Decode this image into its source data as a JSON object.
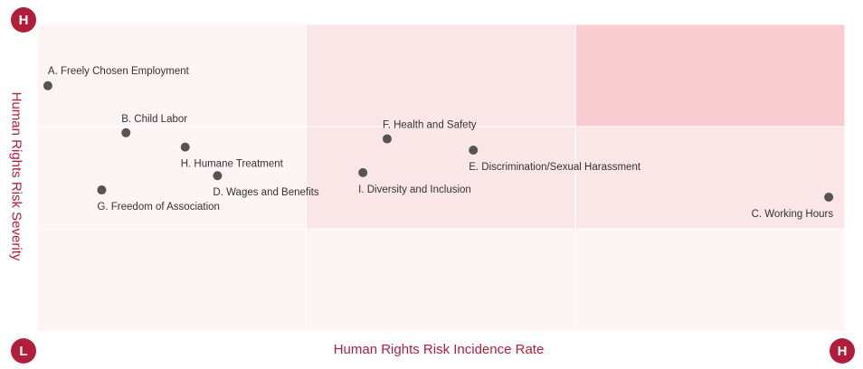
{
  "chart_data": {
    "type": "scatter",
    "xlabel": "Human Rights Risk Incidence Rate",
    "ylabel": "Human Rights Risk Severity",
    "xlim": [
      0,
      3
    ],
    "ylim": [
      0,
      3
    ],
    "corner_labels": {
      "top_left": "H",
      "bottom_left": "L",
      "bottom_right": "H"
    },
    "zone_colors": [
      "#fdf4f4",
      "#fbe6e7",
      "#f8ccd1"
    ],
    "zones": [
      [
        0,
        0,
        0
      ],
      [
        0,
        1,
        1
      ],
      [
        0,
        1,
        2
      ]
    ],
    "dot_color": "#555555",
    "accent_color": "#b01e3c",
    "points": [
      {
        "label": "A. Freely Chosen Employment",
        "x": 0.04,
        "y": 2.4,
        "label_pos": "above-right"
      },
      {
        "label": "B. Child Labor",
        "x": 0.33,
        "y": 1.94,
        "label_pos": "above"
      },
      {
        "label": "H. Humane Treatment",
        "x": 0.55,
        "y": 1.8,
        "label_pos": "below-right"
      },
      {
        "label": "D. Wages and Benefits",
        "x": 0.67,
        "y": 1.52,
        "label_pos": "below-right"
      },
      {
        "label": "G. Freedom of Association",
        "x": 0.24,
        "y": 1.38,
        "label_pos": "below-right"
      },
      {
        "label": "F. Health and Safety",
        "x": 1.3,
        "y": 1.88,
        "label_pos": "above"
      },
      {
        "label": "E. Discrimination/Sexual Harassment",
        "x": 1.62,
        "y": 1.77,
        "label_pos": "below-right"
      },
      {
        "label": "I. Diversity and Inclusion",
        "x": 1.21,
        "y": 1.55,
        "label_pos": "below-right"
      },
      {
        "label": "C. Working Hours",
        "x": 2.94,
        "y": 1.31,
        "label_pos": "below-left"
      }
    ]
  }
}
